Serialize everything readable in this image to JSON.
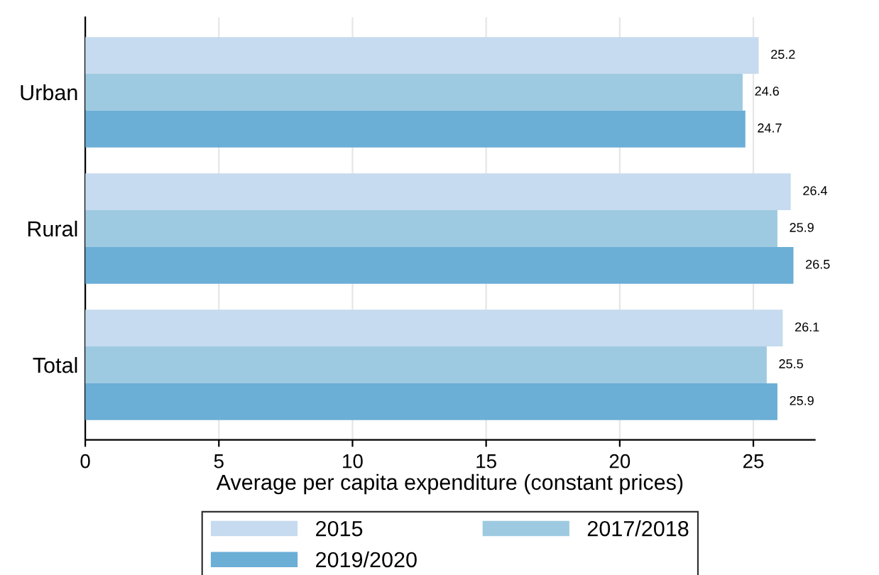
{
  "chart_data": {
    "type": "bar",
    "orientation": "horizontal",
    "xlabel": "Average per capita expenditure (constant prices)",
    "categories": [
      "Urban",
      "Rural",
      "Total"
    ],
    "series": [
      {
        "name": "2015",
        "color": "#c6dbef",
        "values": [
          25.2,
          26.4,
          26.1
        ]
      },
      {
        "name": "2017/2018",
        "color": "#9ecae1",
        "values": [
          24.6,
          25.9,
          25.5
        ]
      },
      {
        "name": "2019/2020",
        "color": "#6baed6",
        "values": [
          24.7,
          26.5,
          25.9
        ]
      }
    ],
    "xlim": [
      0,
      27.3
    ],
    "xticks": [
      0,
      5,
      10,
      15,
      20,
      25
    ],
    "grid": "x",
    "legend": "bottom",
    "data_labels": true
  }
}
